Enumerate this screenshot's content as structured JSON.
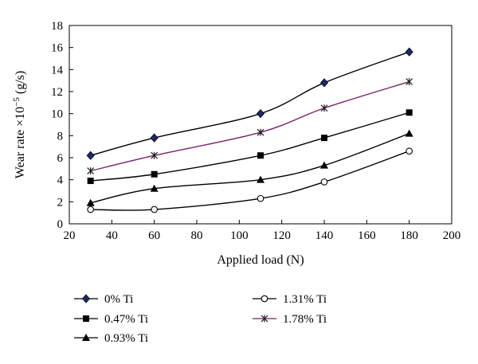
{
  "chart_data": {
    "type": "line",
    "title": "",
    "xlabel": "Applied load (N)",
    "ylabel": "Wear rate ×10⁻⁵ (g/s)",
    "xlim": [
      20,
      200
    ],
    "ylim": [
      0,
      18
    ],
    "xticks": [
      20,
      40,
      60,
      80,
      100,
      120,
      140,
      160,
      180,
      200
    ],
    "yticks": [
      0,
      2,
      4,
      6,
      8,
      10,
      12,
      14,
      16,
      18
    ],
    "grid": false,
    "legend_position": "bottom",
    "series": [
      {
        "name": "0% Ti",
        "marker": "diamond",
        "color": "#000000",
        "marker_color": "#1c2a6b",
        "x": [
          30,
          60,
          110,
          140,
          180
        ],
        "y": [
          6.2,
          7.8,
          10.0,
          12.8,
          15.6
        ]
      },
      {
        "name": "0.47% Ti",
        "marker": "square",
        "color": "#000000",
        "marker_color": "#000000",
        "x": [
          30,
          60,
          110,
          140,
          180
        ],
        "y": [
          3.9,
          4.5,
          6.2,
          7.8,
          10.1
        ]
      },
      {
        "name": "0.93% Ti",
        "marker": "triangle",
        "color": "#000000",
        "marker_color": "#000000",
        "x": [
          30,
          60,
          110,
          140,
          180
        ],
        "y": [
          1.9,
          3.2,
          4.0,
          5.3,
          8.2
        ]
      },
      {
        "name": "1.31% Ti",
        "marker": "circle-open",
        "color": "#000000",
        "marker_color": "#000000",
        "x": [
          30,
          60,
          110,
          140,
          180
        ],
        "y": [
          1.3,
          1.3,
          2.3,
          3.8,
          6.6
        ]
      },
      {
        "name": "1.78% Ti",
        "marker": "star",
        "color": "#7a1f6e",
        "marker_color": "#1a1a1a",
        "x": [
          30,
          60,
          110,
          140,
          180
        ],
        "y": [
          4.8,
          6.2,
          8.3,
          10.5,
          12.9
        ]
      }
    ]
  }
}
